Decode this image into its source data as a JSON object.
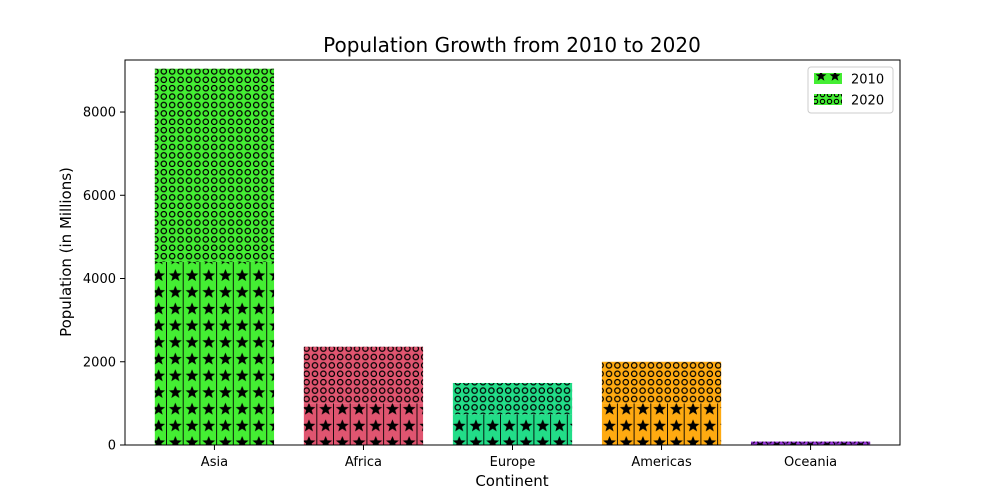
{
  "chart_data": {
    "type": "bar",
    "stacked": true,
    "title": "Population Growth from 2010 to 2020",
    "xlabel": "Continent",
    "ylabel": "Population (in Millions)",
    "categories": [
      "Asia",
      "Africa",
      "Europe",
      "Americas",
      "Oceania"
    ],
    "colors": [
      "#44ee33",
      "#e05570",
      "#22dd88",
      "#ffaa11",
      "#9933dd"
    ],
    "ylim": [
      0,
      9250
    ],
    "yticks": [
      0,
      2000,
      4000,
      6000,
      8000
    ],
    "grid": false,
    "legend_position": "top-right",
    "series": [
      {
        "name": "2010",
        "pattern": "stars",
        "values": [
          4400,
          1000,
          740,
          1000,
          37
        ]
      },
      {
        "name": "2020",
        "pattern": "circles",
        "values": [
          4640,
          1360,
          750,
          1000,
          45
        ]
      }
    ]
  }
}
